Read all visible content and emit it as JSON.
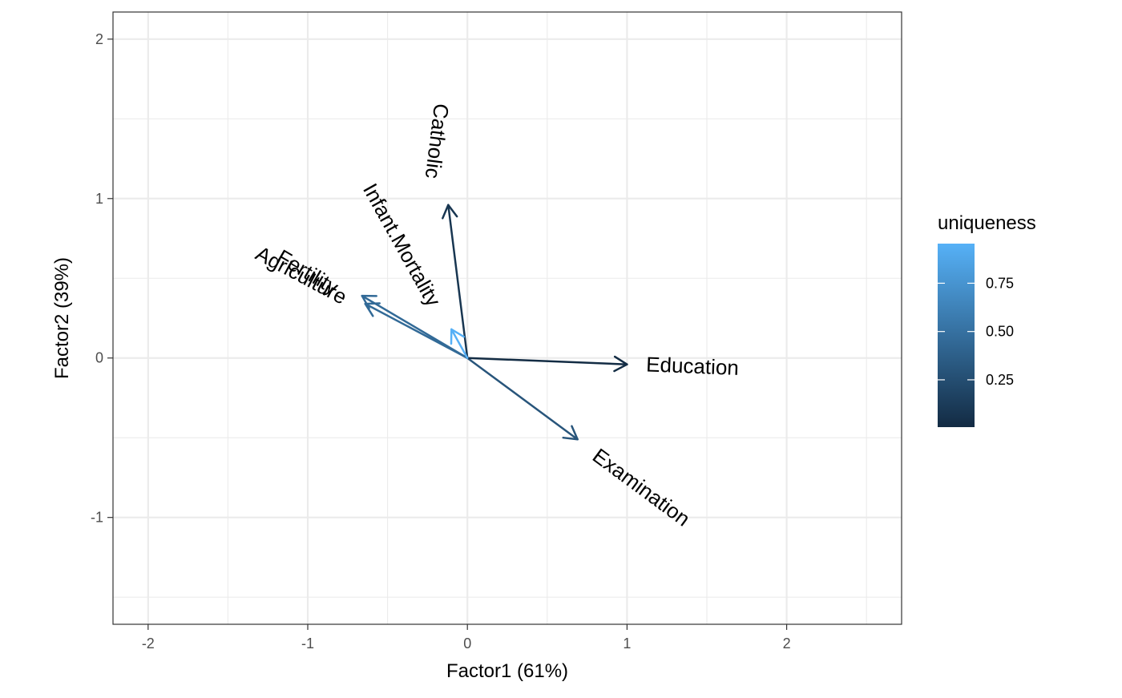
{
  "chart_data": {
    "type": "biplot",
    "xlabel": "Factor1 (61%)",
    "ylabel": "Factor2 (39%)",
    "xlim": [
      -2.22,
      2.72
    ],
    "ylim": [
      -1.67,
      2.17
    ],
    "x_ticks": [
      -2,
      -1,
      0,
      1,
      2
    ],
    "x_tick_labels": [
      "-2",
      "-1",
      "0",
      "1",
      "2"
    ],
    "y_ticks": [
      -1,
      0,
      1,
      2
    ],
    "y_tick_labels": [
      "-1",
      "0",
      "1",
      "2"
    ],
    "grid": true,
    "legend": {
      "title": "uniqueness",
      "position": "right",
      "min": 0.005,
      "max": 0.955,
      "breaks": [
        0.75,
        0.5,
        0.25
      ],
      "break_labels": [
        "0.75",
        "0.50",
        "0.25"
      ],
      "color_low": "#132B43",
      "color_high": "#56B1F7"
    },
    "vectors": [
      {
        "name": "Fertility",
        "x": -0.66,
        "y": 0.39,
        "uniqueness": 0.45,
        "label_x": -1.0,
        "label_y": 0.54,
        "label_angle": 30.6
      },
      {
        "name": "Agriculture",
        "x": -0.64,
        "y": 0.34,
        "uniqueness": 0.45,
        "label_x": -1.04,
        "label_y": 0.52,
        "label_angle": 28.0
      },
      {
        "name": "Examination",
        "x": 0.69,
        "y": -0.51,
        "uniqueness": 0.3,
        "label_x": 1.09,
        "label_y": -0.81,
        "label_angle": 36.5
      },
      {
        "name": "Education",
        "x": 1.0,
        "y": -0.04,
        "uniqueness": 0.01,
        "label_x": 1.41,
        "label_y": -0.05,
        "label_angle": 2.3
      },
      {
        "name": "Catholic",
        "x": -0.12,
        "y": 0.96,
        "uniqueness": 0.08,
        "label_x": -0.19,
        "label_y": 1.36,
        "label_angle": 97.1
      },
      {
        "name": "Infant.Mortality",
        "x": -0.1,
        "y": 0.18,
        "uniqueness": 0.95,
        "label_x": -0.41,
        "label_y": 0.71,
        "label_angle": 60.9
      }
    ]
  }
}
